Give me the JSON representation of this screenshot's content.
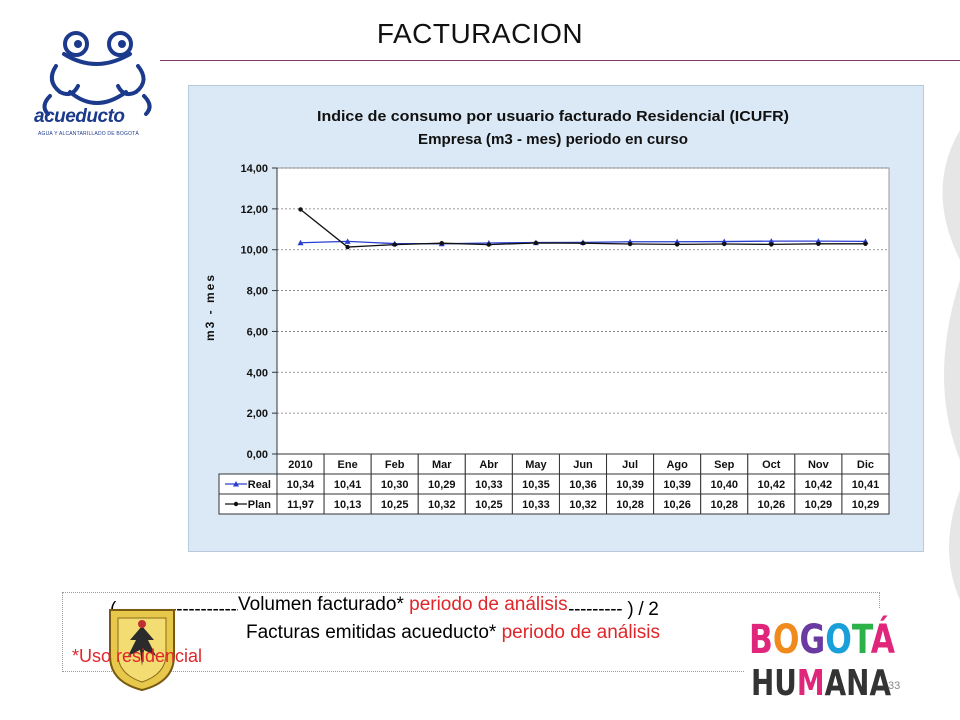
{
  "page": {
    "title": "FACTURACION",
    "page_number": "33"
  },
  "logos": {
    "acueducto_name": "acueducto",
    "acueducto_sub": "AGUA Y ALCANTARILLADO DE BOGOTÁ",
    "bogota_line1": "BOGOTÁ",
    "bogota_line2": "HUMANA"
  },
  "chart_data": {
    "type": "line",
    "title": "Indice de consumo por usuario facturado Residencial (ICUFR)",
    "subtitle": "Empresa (m3 - mes) periodo en curso",
    "ylabel": "m3 - mes",
    "xlabel": "",
    "ylim": [
      0,
      14
    ],
    "y_ticks": [
      "0,00",
      "2,00",
      "4,00",
      "6,00",
      "8,00",
      "10,00",
      "12,00",
      "14,00"
    ],
    "categories": [
      "2010",
      "Ene",
      "Feb",
      "Mar",
      "Abr",
      "May",
      "Jun",
      "Jul",
      "Ago",
      "Sep",
      "Oct",
      "Nov",
      "Dic"
    ],
    "grid": true,
    "legend": "data-table",
    "series": [
      {
        "name": "Real",
        "color": "#2a3fd0",
        "marker": "triangle",
        "values": [
          10.34,
          10.41,
          10.3,
          10.29,
          10.33,
          10.35,
          10.36,
          10.39,
          10.39,
          10.4,
          10.42,
          10.42,
          10.41
        ],
        "labels": [
          "10,34",
          "10,41",
          "10,30",
          "10,29",
          "10,33",
          "10,35",
          "10,36",
          "10,39",
          "10,39",
          "10,40",
          "10,42",
          "10,42",
          "10,41"
        ]
      },
      {
        "name": "Plan",
        "color": "#111111",
        "marker": "dot",
        "values": [
          11.97,
          10.13,
          10.25,
          10.32,
          10.25,
          10.33,
          10.32,
          10.28,
          10.26,
          10.28,
          10.26,
          10.29,
          10.29
        ],
        "labels": [
          "11,97",
          "10,13",
          "10,25",
          "10,32",
          "10,25",
          "10,33",
          "10,32",
          "10,28",
          "10,26",
          "10,28",
          "10,26",
          "10,29",
          "10,29"
        ]
      }
    ]
  },
  "formula": {
    "numerator_black": "Volumen facturado*",
    "numerator_red": "periodo de análisis",
    "open_paren": "(",
    "dashes": "------------------------------------------------------------------------------------",
    "close": ") / 2",
    "denominator_black": "Facturas emitidas acueducto*",
    "denominator_red": "periodo de análisis",
    "note": "*Uso residencial"
  }
}
